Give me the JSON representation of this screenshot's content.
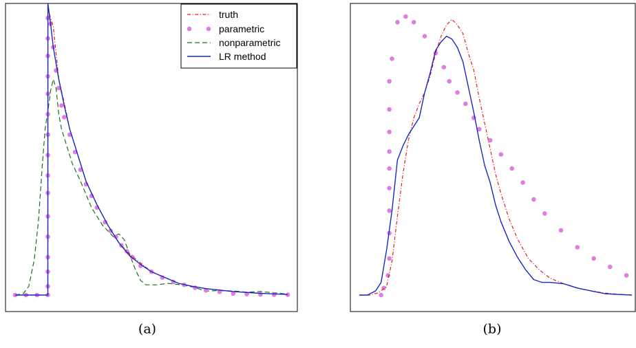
{
  "colors": {
    "truth": "#e0201c",
    "parametric": "#e07ee0",
    "nonparametric": "#1a6e1a",
    "lr_method": "#1726c8",
    "frame": "#000000"
  },
  "chart_data": [
    {
      "type": "line",
      "caption": "(a)",
      "title": "",
      "xlabel": "",
      "ylabel": "",
      "xlim": [
        0,
        100
      ],
      "ylim": [
        0,
        100
      ],
      "legend_position": "top-right",
      "series": [
        {
          "name": "truth",
          "style": "dash-dot",
          "x": [
            0,
            12,
            12.01,
            14,
            15,
            16,
            18,
            20,
            23,
            26,
            30,
            34,
            38,
            42,
            46,
            50,
            55,
            60,
            65,
            70,
            80,
            90,
            100
          ],
          "y": [
            0,
            0,
            98,
            92,
            83,
            74,
            66,
            57,
            48,
            39,
            31,
            24,
            18,
            14,
            11,
            8,
            6,
            4,
            3,
            2.2,
            1.2,
            0.6,
            0.2
          ]
        },
        {
          "name": "parametric",
          "style": "dots",
          "x": [
            0,
            4,
            8,
            12,
            12,
            12,
            12,
            12,
            12,
            12,
            12,
            12,
            12,
            12,
            12,
            12,
            12,
            12,
            12,
            13,
            14,
            15,
            16,
            17,
            18,
            20,
            22,
            24,
            26,
            28,
            30,
            33,
            35,
            37,
            39,
            41,
            43,
            46,
            50,
            54,
            58,
            62,
            66,
            70,
            75,
            80,
            85,
            90,
            95,
            100
          ],
          "y": [
            0,
            0,
            0,
            0,
            3,
            8,
            13,
            20,
            27,
            35,
            41,
            48,
            55,
            62,
            69,
            75,
            82,
            88,
            95,
            93,
            85,
            77,
            71,
            65,
            61,
            55,
            49,
            43,
            38,
            34,
            30,
            25,
            22,
            20,
            17,
            15,
            13,
            10,
            8,
            6,
            4.5,
            3.5,
            2.5,
            1.6,
            1.1,
            0.5,
            0.3,
            0.2,
            0.1,
            0.1
          ]
        },
        {
          "name": "nonparametric",
          "style": "dashed",
          "x": [
            0,
            3,
            5,
            7,
            8.5,
            10,
            11,
            12,
            13,
            14,
            15,
            16,
            17,
            19,
            21,
            24,
            28,
            32,
            36,
            38,
            40,
            42,
            44,
            46,
            48,
            52,
            56,
            60,
            65,
            70,
            75,
            80,
            85,
            90,
            95,
            100
          ],
          "y": [
            0,
            0.5,
            3,
            12,
            25,
            45,
            57,
            63,
            70,
            74,
            71,
            62,
            57,
            51,
            45,
            39,
            30,
            24,
            20,
            21,
            19,
            14,
            9,
            5,
            3.5,
            3.5,
            4,
            3.6,
            2.8,
            1.4,
            1.5,
            1.4,
            1,
            1.2,
            0.8,
            0.3
          ]
        },
        {
          "name": "LR method",
          "x": [
            0,
            12,
            12.01,
            13,
            14,
            16,
            18,
            20,
            23,
            26,
            30,
            34,
            38,
            42,
            46,
            50,
            55,
            60,
            65,
            70,
            80,
            90,
            100
          ],
          "y": [
            0,
            0,
            100,
            93,
            85,
            74,
            65,
            57,
            48,
            39,
            31,
            24,
            18,
            13.5,
            10.5,
            8,
            6,
            4,
            3,
            2.2,
            1.2,
            0.6,
            0.2
          ]
        }
      ]
    },
    {
      "type": "line",
      "caption": "(b)",
      "title": "",
      "xlabel": "",
      "ylabel": "",
      "xlim": [
        0,
        100
      ],
      "ylim": [
        0,
        100
      ],
      "legend_position": "none",
      "series": [
        {
          "name": "truth",
          "style": "dash-dot",
          "x": [
            0,
            4,
            7,
            10,
            12,
            14,
            16,
            18,
            20,
            22,
            24,
            26,
            28,
            30,
            32,
            34,
            36,
            38,
            40,
            42,
            44,
            46,
            48,
            50,
            52,
            55,
            58,
            62,
            66,
            70,
            75,
            80,
            85,
            90,
            95,
            100
          ],
          "y": [
            0,
            0,
            0.8,
            3,
            12,
            28,
            43,
            55,
            63,
            68,
            72,
            78,
            86,
            92,
            96,
            98,
            96,
            93,
            86,
            80,
            70,
            61,
            52,
            43,
            36,
            27,
            20,
            13,
            9,
            6,
            4,
            2.5,
            1.5,
            0.7,
            0.3,
            0
          ]
        },
        {
          "name": "parametric",
          "style": "dots",
          "x": [
            8,
            9,
            10.5,
            11,
            11,
            11,
            11,
            11,
            11,
            11,
            11,
            11,
            12,
            14,
            17,
            20,
            24,
            28,
            31,
            33,
            36,
            39,
            42,
            44,
            48,
            52,
            56,
            60,
            64,
            68,
            74,
            80,
            86,
            92,
            98
          ],
          "y": [
            0,
            2.5,
            7,
            13,
            22,
            30,
            38,
            45,
            51,
            58,
            66,
            76,
            84,
            97,
            99,
            97,
            92,
            86,
            81,
            76,
            72,
            68,
            63,
            59,
            55,
            50,
            45,
            40,
            34,
            29,
            23,
            17,
            13,
            10,
            7
          ]
        },
        {
          "name": "LR method",
          "x": [
            0,
            3,
            6,
            8,
            10,
            12,
            14,
            16,
            18,
            20,
            22,
            24,
            26,
            28,
            30,
            32,
            34,
            36,
            38,
            40,
            42,
            44,
            46,
            48,
            50,
            52,
            55,
            58,
            61,
            64,
            67,
            70,
            75,
            80,
            85,
            90,
            95,
            100
          ],
          "y": [
            0,
            0,
            1.5,
            4.5,
            16,
            30,
            48,
            53,
            57,
            60,
            63,
            72,
            79,
            87,
            90,
            92,
            91,
            88,
            83,
            74,
            65,
            55,
            46,
            40,
            32,
            26,
            19,
            13.5,
            9,
            5.5,
            4.5,
            4.5,
            4,
            2.5,
            1.5,
            0.5,
            0.2,
            0
          ]
        }
      ]
    }
  ]
}
